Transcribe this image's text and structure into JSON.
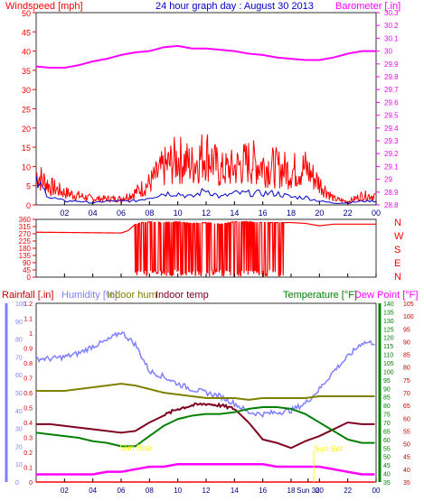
{
  "chart_data": [
    {
      "type": "line",
      "panel": "wind-barometer",
      "title": "24 hour graph day : August 30 2013",
      "left_axis_label": "Windspeed [mph]",
      "right_axis_label": "Barometer [.in]",
      "left_ylim": [
        0,
        50
      ],
      "left_ticks": [
        "0",
        "5",
        "10",
        "15",
        "20",
        "25",
        "30",
        "35",
        "40",
        "45",
        "50"
      ],
      "right_ylim": [
        28.8,
        30.3
      ],
      "right_ticks": [
        "28.8",
        "28.9",
        "29",
        "29.1",
        "29.2",
        "29.3",
        "29.4",
        "29.5",
        "29.6",
        "29.7",
        "29.8",
        "29.9",
        "30",
        "30.1",
        "30.2",
        "30.3"
      ],
      "x_tick_labels": [
        "02",
        "04",
        "06",
        "08",
        "10",
        "12",
        "14",
        "16",
        "18",
        "20",
        "22",
        "00"
      ],
      "grid": false,
      "series": [
        {
          "color": "#ff00ff",
          "axis": "right",
          "x": [
            0,
            1,
            2,
            3,
            4,
            5,
            6,
            7,
            8,
            9,
            10,
            11,
            12,
            13,
            14,
            15,
            16,
            17,
            18,
            19,
            20,
            21,
            22,
            23,
            24
          ],
          "values": [
            29.88,
            29.87,
            29.87,
            29.89,
            29.92,
            29.94,
            29.97,
            29.99,
            30.0,
            30.03,
            30.04,
            30.02,
            30.02,
            30.01,
            30.0,
            29.98,
            29.97,
            29.95,
            29.94,
            29.93,
            29.93,
            29.95,
            29.98,
            30.0,
            30.0
          ]
        },
        {
          "color": "#ff0000",
          "axis": "left",
          "style": "gust-spikes",
          "x": [
            0,
            1,
            2,
            3,
            4,
            5,
            6,
            7,
            8,
            9,
            10,
            11,
            12,
            13,
            14,
            15,
            16,
            17,
            18,
            19,
            20,
            21,
            22,
            23,
            24
          ],
          "values": [
            10,
            6,
            4,
            3,
            2,
            2,
            2,
            4,
            7,
            12,
            15,
            13,
            17,
            11,
            12,
            14,
            13,
            12,
            11,
            12,
            7,
            2,
            1,
            3,
            3
          ]
        },
        {
          "color": "#0000cc",
          "axis": "left",
          "x": [
            0,
            1,
            2,
            3,
            4,
            5,
            6,
            7,
            8,
            9,
            10,
            11,
            12,
            13,
            14,
            15,
            16,
            17,
            18,
            19,
            20,
            21,
            22,
            23,
            24
          ],
          "values": [
            6,
            2,
            1,
            1,
            0.5,
            1,
            1,
            1,
            2,
            3,
            3,
            2,
            4,
            2,
            3,
            3,
            3,
            3,
            2,
            2,
            1,
            0.5,
            0.5,
            1,
            1
          ]
        }
      ]
    },
    {
      "type": "line",
      "panel": "wind-direction",
      "ylim": [
        0,
        360
      ],
      "left_ticks": [
        "0",
        "45",
        "90",
        "135",
        "180",
        "225",
        "270",
        "315",
        "360"
      ],
      "right_labels": [
        "N",
        "W",
        "S",
        "E",
        "N"
      ],
      "x_tick_labels": [
        "02",
        "04",
        "06",
        "08",
        "10",
        "12",
        "14",
        "16",
        "18",
        "20",
        "22",
        "00"
      ],
      "series": [
        {
          "color": "#ff0000",
          "x": [
            0,
            6,
            6.5,
            7,
            7.5,
            8,
            9,
            10,
            11,
            12,
            13,
            14,
            15,
            16,
            17,
            18,
            19,
            20,
            21,
            24
          ],
          "values": [
            280,
            275,
            290,
            330,
            340,
            345,
            340,
            345,
            335,
            340,
            330,
            345,
            345,
            340,
            340,
            340,
            335,
            320,
            330,
            330
          ]
        }
      ]
    },
    {
      "type": "line",
      "panel": "rain-humidity-temperature",
      "legend": [
        "Rainfall [.in]",
        "Humidity [%]",
        "Indoor hum",
        "Indoor temp",
        "Temperature [°F]",
        "Dew Point [°F]"
      ],
      "rain_ticks": [
        "0",
        "0.1",
        "0.2",
        "0.3",
        "0.4",
        "0.5",
        "0.6",
        "0.7",
        "0.8",
        "0.9",
        "1",
        "1.1",
        "1.2"
      ],
      "humidity_ticks": [
        "0",
        "10",
        "20",
        "30",
        "40",
        "50",
        "60",
        "70",
        "80",
        "90",
        "100"
      ],
      "temperature_ticks": [
        "35",
        "40",
        "45",
        "50",
        "55",
        "60",
        "65",
        "70",
        "75",
        "80",
        "85",
        "90",
        "95",
        "100",
        "105",
        "110",
        "115",
        "120",
        "125",
        "130",
        "135",
        "140"
      ],
      "dewpoint_ticks": [
        "35",
        "40",
        "45",
        "50",
        "55",
        "60",
        "65",
        "70",
        "75",
        "80",
        "85",
        "90",
        "95",
        "100",
        "105"
      ],
      "x_tick_labels": [
        "02",
        "04",
        "06",
        "08",
        "10",
        "12",
        "14",
        "16",
        "18",
        "Sun 30",
        "20",
        "22",
        "00"
      ],
      "annotations": [
        "Sun Rise",
        "Sun Set"
      ],
      "series": [
        {
          "name": "Humidity [%]",
          "color": "#8080ff",
          "x": [
            0,
            1,
            2,
            3,
            4,
            5,
            6,
            7,
            8,
            9,
            10,
            11,
            12,
            13,
            14,
            15,
            16,
            17,
            18,
            19,
            20,
            21,
            22,
            23,
            24
          ],
          "values": [
            69,
            69,
            70,
            72,
            76,
            79,
            84,
            77,
            62,
            59,
            55,
            52,
            50,
            48,
            44,
            39,
            38,
            39,
            40,
            44,
            52,
            62,
            70,
            78,
            78
          ]
        },
        {
          "name": "Indoor hum",
          "color": "#808000",
          "x": [
            0,
            1,
            2,
            3,
            4,
            5,
            6,
            7,
            8,
            9,
            10,
            11,
            12,
            13,
            14,
            15,
            16,
            17,
            18,
            19,
            20,
            21,
            22,
            23,
            24
          ],
          "values": [
            51,
            51,
            51,
            52,
            53,
            54,
            55,
            54,
            52,
            50,
            49,
            48,
            47,
            47,
            47,
            46,
            47,
            47,
            47,
            47,
            48,
            48,
            48,
            48,
            48
          ]
        },
        {
          "name": "Indoor temp",
          "color": "#800020",
          "x": [
            0,
            1,
            2,
            3,
            4,
            5,
            6,
            7,
            8,
            9,
            10,
            11,
            12,
            13,
            14,
            15,
            16,
            17,
            18,
            19,
            20,
            21,
            22,
            23,
            24
          ],
          "values": [
            69,
            69,
            68,
            67,
            66,
            65,
            64,
            65,
            70,
            74,
            78,
            80,
            81,
            80,
            78,
            70,
            60,
            58,
            55,
            59,
            62,
            66,
            70,
            69,
            69
          ]
        },
        {
          "name": "Temperature [°F]",
          "color": "#008000",
          "x": [
            0,
            1,
            2,
            3,
            4,
            5,
            6,
            7,
            8,
            9,
            10,
            11,
            12,
            13,
            14,
            15,
            16,
            17,
            18,
            19,
            20,
            21,
            22,
            23,
            24
          ],
          "values": [
            64,
            63,
            62,
            61,
            59,
            58,
            56,
            56,
            62,
            68,
            72,
            74,
            75,
            75,
            76,
            78,
            79,
            79,
            78,
            75,
            70,
            65,
            60,
            58,
            58
          ]
        },
        {
          "name": "Dew Point [°F]",
          "color": "#ff00ff",
          "x": [
            0,
            1,
            2,
            3,
            4,
            5,
            6,
            7,
            8,
            9,
            10,
            11,
            12,
            13,
            14,
            15,
            16,
            17,
            18,
            19,
            20,
            21,
            22,
            23,
            24
          ],
          "values": [
            38,
            38,
            38,
            38,
            38,
            39,
            39,
            40,
            41,
            41,
            42,
            42,
            42,
            42,
            42,
            42,
            42,
            41,
            41,
            41,
            41,
            40,
            39,
            38,
            38
          ]
        },
        {
          "name": "Rainfall [.in]",
          "color": "#ff0000",
          "x": [
            0,
            24
          ],
          "values": [
            0,
            0
          ]
        }
      ]
    }
  ]
}
